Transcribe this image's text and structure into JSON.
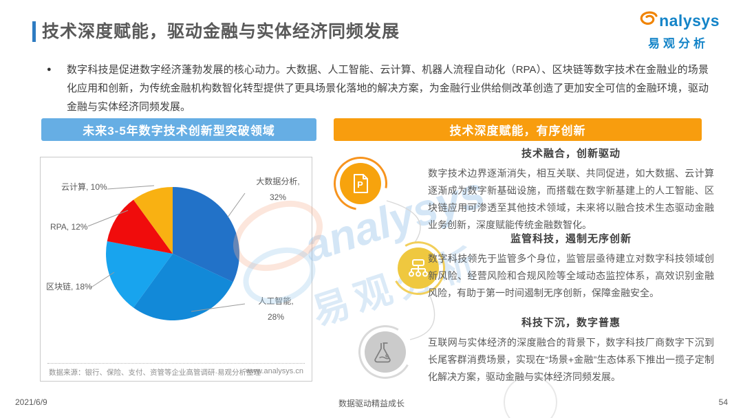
{
  "page": {
    "title": "技术深度赋能，驱动金融与实体经济同频发展",
    "intro_bullet": "●",
    "intro": "数字科技是促进数字经济蓬勃发展的核心动力。大数据、人工智能、云计算、机器人流程自动化（RPA）、区块链等数字技术在金融业的场景化应用和创新，为传统金融机构数智化转型提供了更具场景化落地的解决方案，为金融行业供给侧改革创造了更加安全可信的金融环境，驱动金融与实体经济同频发展。",
    "footer": {
      "date": "2021/6/9",
      "slogan": "数据驱动精益成长",
      "page_number": "54"
    }
  },
  "logo": {
    "brand": "analysys",
    "brand_rest": "nalysys",
    "brand_cn": "易观分析"
  },
  "watermark": {
    "latin": "analysys",
    "cn": "易观分析"
  },
  "left_panel": {
    "header": "未来3-5年数字技术创新型突破领域",
    "source_note": "数据来源：银行、保险、支付、资管等企业高管调研·易观分析整理",
    "source_url": "www.analysys.cn"
  },
  "right_panel": {
    "header": "技术深度赋能，有序创新",
    "sections": [
      {
        "icon": "document-p",
        "title": "技术融合，创新驱动",
        "body": "数字技术边界逐渐消失，相互关联、共同促进，如大数据、云计算逐渐成为数字新基础设施，而搭载在数字新基建上的人工智能、区块链应用可渗透至其他技术领域，未来将以融合技术生态驱动金融业务创新，深度赋能传统金融数智化。"
      },
      {
        "icon": "flowchart",
        "title": "监管科技，遏制无序创新",
        "body": "数字科技领先于监管多个身位，监管层亟待建立对数字科技领域创新风险、经营风险和合规风险等全域动态监控体系，高效识别金融风险，有助于第一时间遏制无序创新，保障金融安全。"
      },
      {
        "icon": "flask",
        "title": "科技下沉，数字普惠",
        "body": "互联网与实体经济的深度融合的背景下，数字科技厂商数字下沉到长尾客群消费场景，实现在“场景+金融”生态体系下推出一揽子定制化解决方案，驱动金融与实体经济同频发展。"
      }
    ]
  },
  "chart_data": {
    "type": "pie",
    "title": "未来3-5年数字技术创新型突破领域",
    "labels": [
      "大数据分析",
      "人工智能",
      "区块链",
      "RPA",
      "云计算"
    ],
    "values": [
      32,
      28,
      18,
      12,
      10
    ],
    "unit": "%",
    "colors": [
      "#2272C8",
      "#1289D8",
      "#18A4EE",
      "#F00C0C",
      "#F9B112"
    ],
    "start_angle_deg": 0,
    "direction": "clockwise",
    "legend_position": "outside-labels-with-leader-lines",
    "labels_display": {
      "big_data": [
        "大数据分析,",
        "32%"
      ],
      "ai": [
        "人工智能,",
        "28%"
      ],
      "blockchain": "区块链, 18%",
      "rpa": "RPA, 12%",
      "cloud": "云计算, 10%"
    }
  }
}
